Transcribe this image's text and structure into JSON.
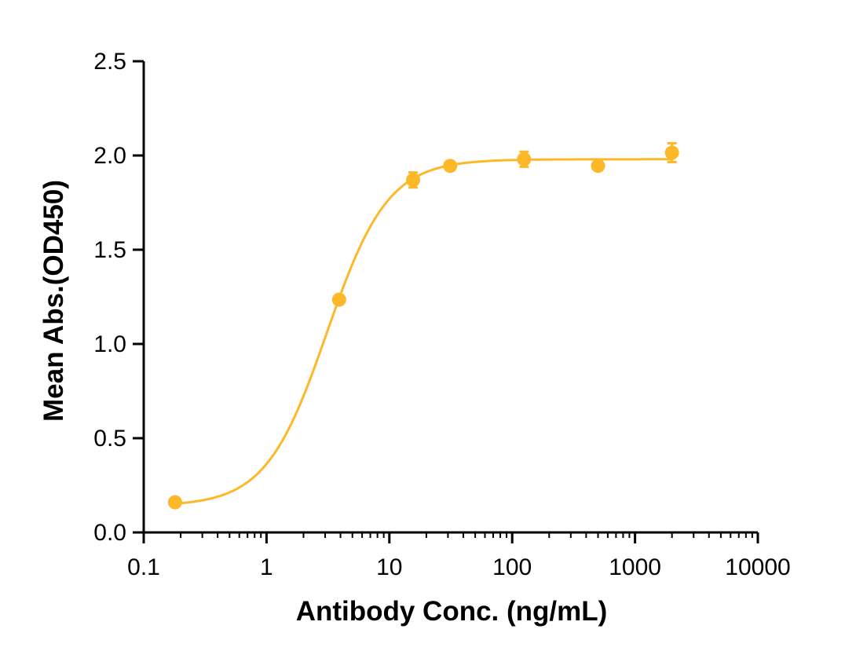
{
  "chart_data": {
    "type": "scatter",
    "xlabel": "Antibody Conc. (ng/mL)",
    "ylabel": "Mean Abs.(OD450)",
    "xscale": "log",
    "xlim": [
      0.1,
      10000
    ],
    "ylim": [
      0.0,
      2.5
    ],
    "x_ticks": [
      0.1,
      1,
      10,
      100,
      1000,
      10000
    ],
    "x_tick_labels": [
      "0.1",
      "1",
      "10",
      "100",
      "1000",
      "10000"
    ],
    "y_ticks": [
      0.0,
      0.5,
      1.0,
      1.5,
      2.0,
      2.5
    ],
    "y_tick_labels": [
      "0.0",
      "0.5",
      "1.0",
      "1.5",
      "2.0",
      "2.5"
    ],
    "grid": false,
    "color": "#fdb82a",
    "series": [
      {
        "x": [
          0.18,
          3.9,
          15.6,
          31.25,
          125,
          500,
          2000
        ],
        "y": [
          0.16,
          1.235,
          1.87,
          1.945,
          1.98,
          1.945,
          2.015
        ],
        "error": [
          0.0,
          0.0,
          0.04,
          0.0,
          0.04,
          0.0,
          0.05
        ]
      }
    ],
    "fit": {
      "model": "4PL",
      "bottom": 0.14,
      "top": 1.98,
      "ec50": 3.1,
      "hill": 1.75
    }
  }
}
